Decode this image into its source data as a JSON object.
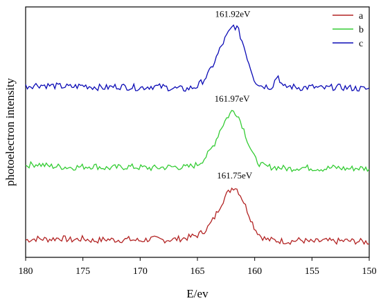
{
  "chart_data": {
    "type": "line",
    "xlabel": "E/ev",
    "ylabel": "photoelectron  intensity",
    "xlim": [
      180,
      150
    ],
    "x_reversed": true,
    "x_ticks": [
      180,
      175,
      170,
      165,
      160,
      155,
      150
    ],
    "x_tick_labels": [
      "180",
      "175",
      "170",
      "165",
      "160",
      "155",
      "150"
    ],
    "y_ticks_shown": false,
    "grid": false,
    "legend_position": "top-right",
    "series": [
      {
        "name": "a",
        "color": "#b22222",
        "x": [
          180,
          179,
          178,
          177,
          176,
          175,
          174,
          173,
          172,
          171,
          170,
          169,
          168,
          167,
          166,
          165,
          164.5,
          164,
          163.5,
          163,
          162.5,
          162,
          161.75,
          161.5,
          161,
          160.5,
          160,
          159.5,
          159,
          158,
          157,
          156,
          155,
          154,
          153,
          152,
          151,
          150
        ],
        "y": [
          0.05,
          0.07,
          0.06,
          0.08,
          0.05,
          0.07,
          0.04,
          0.06,
          0.05,
          0.06,
          0.04,
          0.07,
          0.05,
          0.06,
          0.08,
          0.12,
          0.17,
          0.25,
          0.38,
          0.55,
          0.7,
          0.8,
          0.82,
          0.78,
          0.62,
          0.42,
          0.22,
          0.11,
          0.06,
          0.04,
          0.03,
          0.05,
          0.02,
          0.04,
          0.03,
          0.04,
          0.03,
          0.02
        ]
      },
      {
        "name": "b",
        "color": "#33cc33",
        "x": [
          180,
          179,
          178,
          177,
          176,
          175,
          174,
          173,
          172,
          171,
          170,
          169,
          168,
          167,
          166,
          165,
          164.5,
          164,
          163.5,
          163,
          162.5,
          162,
          161.97,
          161.5,
          161,
          160.5,
          160,
          159.5,
          159,
          158,
          157,
          156,
          155,
          154,
          153,
          152,
          151,
          150
        ],
        "y": [
          0.08,
          0.1,
          0.07,
          0.06,
          0.05,
          0.06,
          0.07,
          0.04,
          0.05,
          0.06,
          0.05,
          0.04,
          0.05,
          0.06,
          0.05,
          0.09,
          0.16,
          0.26,
          0.4,
          0.6,
          0.75,
          0.86,
          0.88,
          0.82,
          0.62,
          0.38,
          0.18,
          0.09,
          0.06,
          0.05,
          0.03,
          0.05,
          0.04,
          0.03,
          0.05,
          0.03,
          0.04,
          0.03
        ]
      },
      {
        "name": "c",
        "color": "#0a0ab5",
        "x": [
          180,
          179,
          178,
          177,
          176,
          175,
          174,
          173,
          172,
          171,
          170,
          169,
          168,
          167,
          166,
          165,
          164.5,
          164,
          163.5,
          163,
          162.5,
          162,
          161.92,
          161.5,
          161,
          160.5,
          160,
          159.5,
          159,
          158.5,
          158,
          157.5,
          157,
          156,
          155,
          154,
          153,
          152,
          151,
          150
        ],
        "y": [
          0.06,
          0.08,
          0.07,
          0.06,
          0.05,
          0.07,
          0.05,
          0.04,
          0.06,
          0.05,
          0.04,
          0.06,
          0.05,
          0.03,
          0.02,
          0.06,
          0.14,
          0.24,
          0.4,
          0.58,
          0.74,
          0.86,
          0.9,
          0.86,
          0.64,
          0.38,
          0.14,
          0.07,
          0.06,
          0.05,
          0.22,
          0.04,
          0.06,
          0.04,
          0.05,
          0.03,
          0.05,
          0.04,
          0.03,
          0.02
        ]
      }
    ],
    "annotations": [
      {
        "text": "161.75eV",
        "x": 161.75,
        "series": "a"
      },
      {
        "text": "161.97eV",
        "x": 161.97,
        "series": "b"
      },
      {
        "text": "161.92eV",
        "x": 161.92,
        "series": "c"
      }
    ]
  }
}
